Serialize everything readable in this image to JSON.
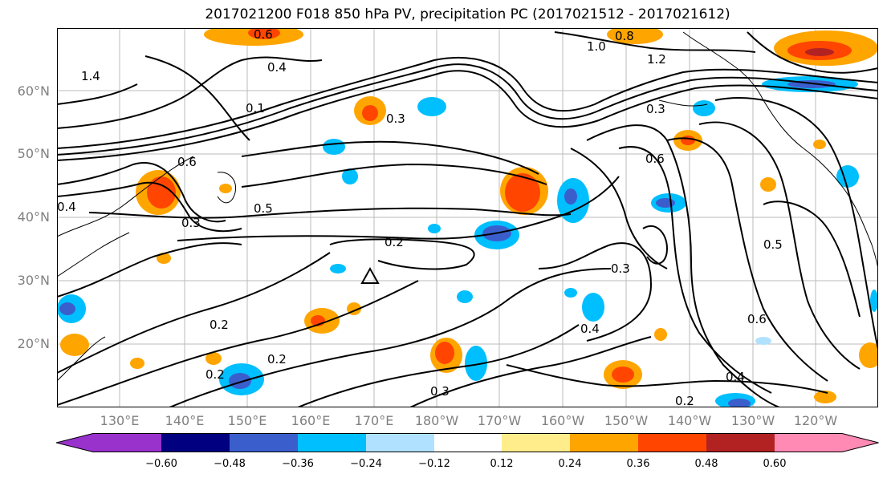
{
  "title": "2017021200 F018 850 hPa PV, precipitation PC (2017021512 - 2017021612)",
  "map": {
    "projection": "PlateCarree",
    "lon_range": [
      120,
      245
    ],
    "lat_range": [
      10,
      70
    ],
    "lat_labels": [
      "60°N",
      "50°N",
      "40°N",
      "30°N",
      "20°N"
    ],
    "lon_labels": [
      "130°E",
      "140°E",
      "150°E",
      "160°E",
      "170°E",
      "180°W",
      "170°W",
      "160°W",
      "150°W",
      "140°W",
      "130°W",
      "120°W"
    ],
    "contour_labels": [
      "0.6",
      "0.4",
      "0.8",
      "1.0",
      "1.2",
      "1.4",
      "0.2",
      "0.3",
      "0.5",
      "0.6",
      "0.1",
      "0.2",
      "0.3",
      "0.4",
      "0.6",
      "0.3",
      "0.2",
      "0.4",
      "0.5",
      "0.6",
      "0.3",
      "0.2",
      "0.3",
      "0.4",
      "0.2"
    ]
  },
  "colorbar": {
    "ticks": [
      "−0.60",
      "−0.48",
      "−0.36",
      "−0.24",
      "−0.12",
      "0.12",
      "0.24",
      "0.36",
      "0.48",
      "0.60"
    ],
    "colors": [
      "#9932cc",
      "#000080",
      "#3a5fcd",
      "#00bfff",
      "#b0e2ff",
      "#ffffff",
      "#ffec8b",
      "#ffa500",
      "#ff4500",
      "#b22222",
      "#ff8ab4"
    ]
  }
}
